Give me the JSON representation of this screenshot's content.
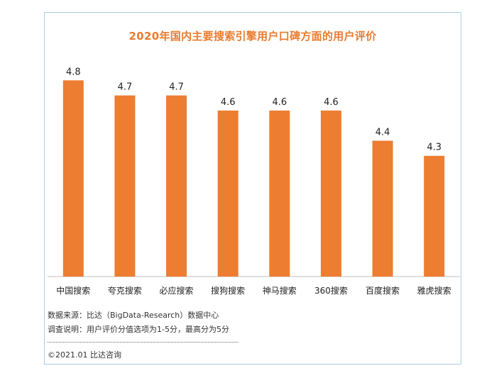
{
  "chart_data": {
    "type": "bar",
    "title": "2020年国内主要搜索引擎用户口碑方面的用户评价",
    "categories": [
      "中国搜索",
      "夸克搜索",
      "必应搜索",
      "搜狗搜索",
      "神马搜索",
      "360搜索",
      "百度搜索",
      "雅虎搜索"
    ],
    "values": [
      4.8,
      4.7,
      4.7,
      4.6,
      4.6,
      4.6,
      4.4,
      4.3
    ],
    "value_labels": [
      "4.8",
      "4.7",
      "4.7",
      "4.6",
      "4.6",
      "4.6",
      "4.4",
      "4.3"
    ],
    "xlabel": "",
    "ylabel": "",
    "ylim": [
      3.5,
      4.9
    ],
    "grid": false,
    "bar_color": "#ed7d31"
  },
  "footer": {
    "source": "数据来源：比达（BigData-Research）数据中心",
    "description": "调查说明：用户评价分值选项为1-5分，最高分为5分",
    "copyright": "©2021.01 比达咨询"
  },
  "colors": {
    "title": "#e97b2e",
    "frame_border": "#a9cfe4",
    "axis": "#bfbfbf"
  }
}
